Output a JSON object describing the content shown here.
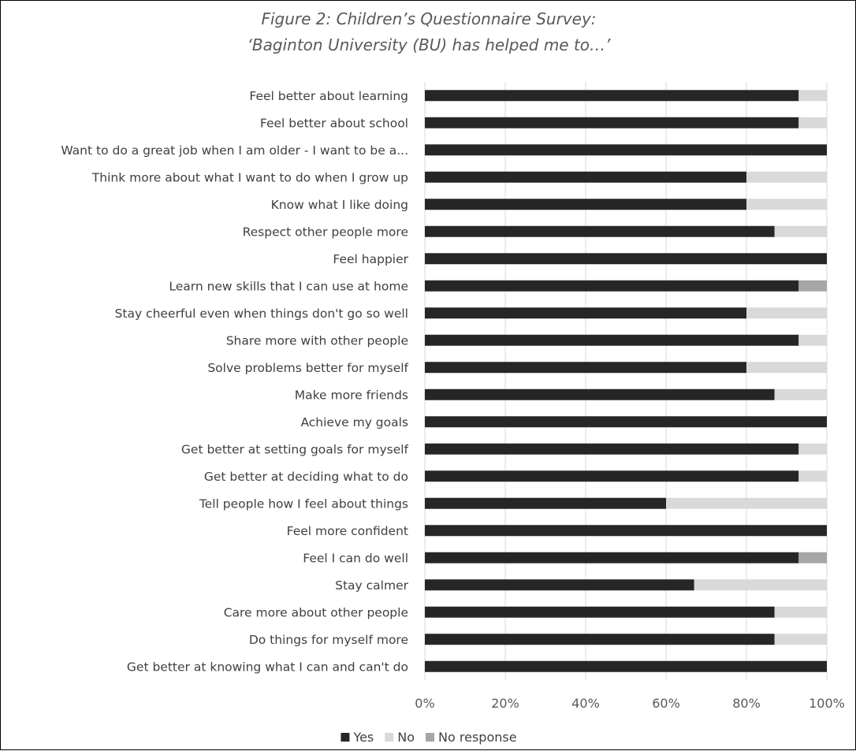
{
  "chart_data": {
    "type": "bar",
    "orientation": "horizontal",
    "stacked": true,
    "title": "Figure 2: Children’s Questionnaire Survey:",
    "subtitle": "‘Baginton University (BU) has helped me to…’",
    "xlabel": "",
    "ylabel": "",
    "xlim": [
      0,
      100
    ],
    "x_ticks": [
      "0%",
      "20%",
      "40%",
      "60%",
      "80%",
      "100%"
    ],
    "grid": true,
    "legend_position": "bottom",
    "categories": [
      "Feel better about learning",
      "Feel better about school",
      "Want to do a great job when I am older - I want to be a...",
      "Think more about what I want to do when I grow up",
      "Know what I like doing",
      "Respect other people more",
      "Feel happier",
      "Learn new skills that I can use at home",
      "Stay cheerful even when things don't go so well",
      "Share more with other people",
      "Solve problems better for myself",
      "Make more friends",
      "Achieve my goals",
      "Get better at setting goals for myself",
      "Get better at deciding what to do",
      "Tell people how I feel about things",
      "Feel more confident",
      "Feel I can do well",
      "Stay calmer",
      "Care more about other people",
      "Do things for myself more",
      "Get better at knowing what I can and can't do"
    ],
    "series": [
      {
        "name": "Yes",
        "color": "#262626",
        "values": [
          93,
          93,
          100,
          80,
          80,
          87,
          100,
          93,
          80,
          93,
          80,
          87,
          100,
          93,
          93,
          60,
          100,
          93,
          67,
          87,
          87,
          100
        ]
      },
      {
        "name": "No",
        "color": "#d9d9d9",
        "values": [
          7,
          7,
          0,
          20,
          20,
          13,
          0,
          0,
          20,
          7,
          20,
          13,
          0,
          7,
          7,
          40,
          0,
          0,
          33,
          13,
          13,
          0
        ]
      },
      {
        "name": "No response",
        "color": "#a6a6a6",
        "values": [
          0,
          0,
          0,
          0,
          0,
          0,
          0,
          7,
          0,
          0,
          0,
          0,
          0,
          0,
          0,
          0,
          0,
          7,
          0,
          0,
          0,
          0
        ]
      }
    ]
  }
}
